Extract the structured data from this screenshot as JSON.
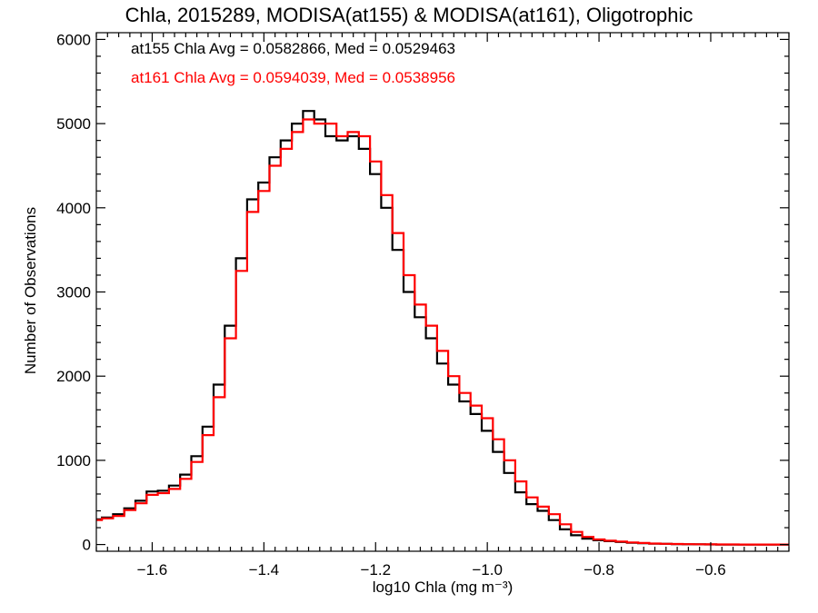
{
  "chart_data": {
    "type": "line",
    "title": "Chla, 2015289, MODISA(at155) & MODISA(at161), Oligotrophic",
    "xlabel": "log10 Chla (mg m⁻³)",
    "ylabel": "Number of Observations",
    "xlim": [
      -1.7,
      -0.46
    ],
    "ylim": [
      -80,
      6080
    ],
    "x_ticks": [
      "−1.6",
      "−1.4",
      "−1.2",
      "−1.0",
      "−0.8",
      "−0.6"
    ],
    "x_tick_values": [
      -1.6,
      -1.4,
      -1.2,
      -1.0,
      -0.8,
      -0.6
    ],
    "y_ticks": [
      "0",
      "1000",
      "2000",
      "3000",
      "4000",
      "5000",
      "6000"
    ],
    "y_tick_values": [
      0,
      1000,
      2000,
      3000,
      4000,
      5000,
      6000
    ],
    "step": true,
    "annotations": [
      {
        "text": "at155 Chla Avg = 0.0582866, Med = 0.0529463",
        "color": "#000000"
      },
      {
        "text": "at161 Chla Avg = 0.0594039, Med = 0.0538956",
        "color": "#ff0000"
      }
    ],
    "series": [
      {
        "color": "#000000",
        "x": [
          -1.7,
          -1.68,
          -1.66,
          -1.64,
          -1.62,
          -1.6,
          -1.58,
          -1.56,
          -1.54,
          -1.52,
          -1.5,
          -1.48,
          -1.46,
          -1.44,
          -1.42,
          -1.4,
          -1.38,
          -1.36,
          -1.34,
          -1.32,
          -1.3,
          -1.28,
          -1.26,
          -1.24,
          -1.22,
          -1.2,
          -1.18,
          -1.16,
          -1.14,
          -1.12,
          -1.1,
          -1.08,
          -1.06,
          -1.04,
          -1.02,
          -1.0,
          -0.98,
          -0.96,
          -0.94,
          -0.92,
          -0.9,
          -0.88,
          -0.86,
          -0.84,
          -0.82,
          -0.8,
          -0.78,
          -0.76,
          -0.74,
          -0.72,
          -0.7,
          -0.68,
          -0.66,
          -0.64,
          -0.62,
          -0.6,
          -0.58,
          -0.56,
          -0.54,
          -0.52,
          -0.5,
          -0.48,
          -0.46
        ],
        "y": [
          300,
          320,
          360,
          430,
          520,
          630,
          640,
          700,
          830,
          1050,
          1400,
          1900,
          2600,
          3400,
          4100,
          4300,
          4600,
          4800,
          5000,
          5150,
          5050,
          4850,
          4800,
          4850,
          4700,
          4400,
          4000,
          3500,
          3000,
          2700,
          2450,
          2150,
          1900,
          1700,
          1550,
          1350,
          1100,
          850,
          620,
          480,
          400,
          290,
          180,
          110,
          70,
          50,
          40,
          30,
          20,
          15,
          10,
          8,
          5,
          3,
          2,
          1,
          0,
          0,
          0,
          0,
          0,
          0,
          0
        ]
      },
      {
        "color": "#ff0000",
        "x": [
          -1.7,
          -1.68,
          -1.66,
          -1.64,
          -1.62,
          -1.6,
          -1.58,
          -1.56,
          -1.54,
          -1.52,
          -1.5,
          -1.48,
          -1.46,
          -1.44,
          -1.42,
          -1.4,
          -1.38,
          -1.36,
          -1.34,
          -1.32,
          -1.3,
          -1.28,
          -1.26,
          -1.24,
          -1.22,
          -1.2,
          -1.18,
          -1.16,
          -1.14,
          -1.12,
          -1.1,
          -1.08,
          -1.06,
          -1.04,
          -1.02,
          -1.0,
          -0.98,
          -0.96,
          -0.94,
          -0.92,
          -0.9,
          -0.88,
          -0.86,
          -0.84,
          -0.82,
          -0.8,
          -0.78,
          -0.76,
          -0.74,
          -0.72,
          -0.7,
          -0.68,
          -0.66,
          -0.64,
          -0.62,
          -0.6,
          -0.58,
          -0.56,
          -0.54,
          -0.52,
          -0.5,
          -0.48,
          -0.46
        ],
        "y": [
          290,
          310,
          340,
          410,
          490,
          590,
          610,
          660,
          780,
          980,
          1300,
          1750,
          2450,
          3250,
          3950,
          4200,
          4500,
          4700,
          4900,
          5050,
          5000,
          5000,
          4850,
          4900,
          4850,
          4550,
          4150,
          3700,
          3200,
          2850,
          2600,
          2300,
          2000,
          1800,
          1650,
          1500,
          1250,
          1000,
          750,
          560,
          450,
          360,
          240,
          150,
          90,
          60,
          45,
          35,
          25,
          18,
          12,
          9,
          6,
          4,
          3,
          2,
          1,
          1,
          0,
          0,
          0,
          0,
          0
        ]
      }
    ]
  }
}
